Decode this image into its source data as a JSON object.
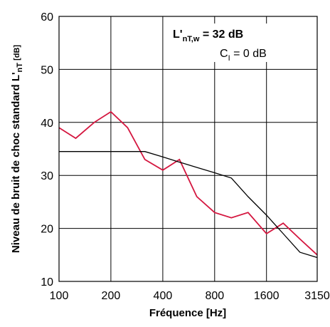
{
  "chart_data": {
    "type": "line",
    "xlabel": "Fréquence [Hz]",
    "ylabel": {
      "main": "Niveau de bruit de choc standard L'",
      "sub": "nT",
      "unit": " [dB]"
    },
    "ylim": [
      10,
      60
    ],
    "yticks": [
      10,
      20,
      30,
      40,
      50,
      60
    ],
    "x_scale": "log",
    "xlim": [
      100,
      3150
    ],
    "xtick_labels": [
      "100",
      "200",
      "400",
      "800",
      "1600",
      "3150"
    ],
    "xticks": [
      100,
      200,
      400,
      800,
      1600,
      3150
    ],
    "grid": true,
    "annotation": {
      "rating_main": "L'",
      "rating_sub": "nT,w",
      "rating_value": " = 32 dB",
      "ci_main": "C",
      "ci_sub": "I",
      "ci_value": " = 0 dB"
    },
    "series": [
      {
        "color": "#d4163f",
        "x": [
          100,
          125,
          160,
          200,
          250,
          315,
          400,
          500,
          630,
          800,
          1000,
          1250,
          1600,
          2000,
          2500,
          3150
        ],
        "y": [
          39,
          37,
          40,
          42,
          39,
          33,
          31,
          33,
          26,
          23,
          22,
          23,
          19,
          21,
          18,
          15
        ]
      },
      {
        "color": "#000000",
        "x": [
          100,
          125,
          160,
          200,
          250,
          315,
          400,
          500,
          630,
          800,
          1000,
          1250,
          1600,
          2000,
          2500,
          3150
        ],
        "y": [
          34.5,
          34.5,
          34.5,
          34.5,
          34.5,
          34.5,
          33.5,
          32.5,
          31.5,
          30.5,
          29.5,
          26.0,
          22.5,
          19.0,
          15.5,
          14.5
        ]
      }
    ]
  }
}
